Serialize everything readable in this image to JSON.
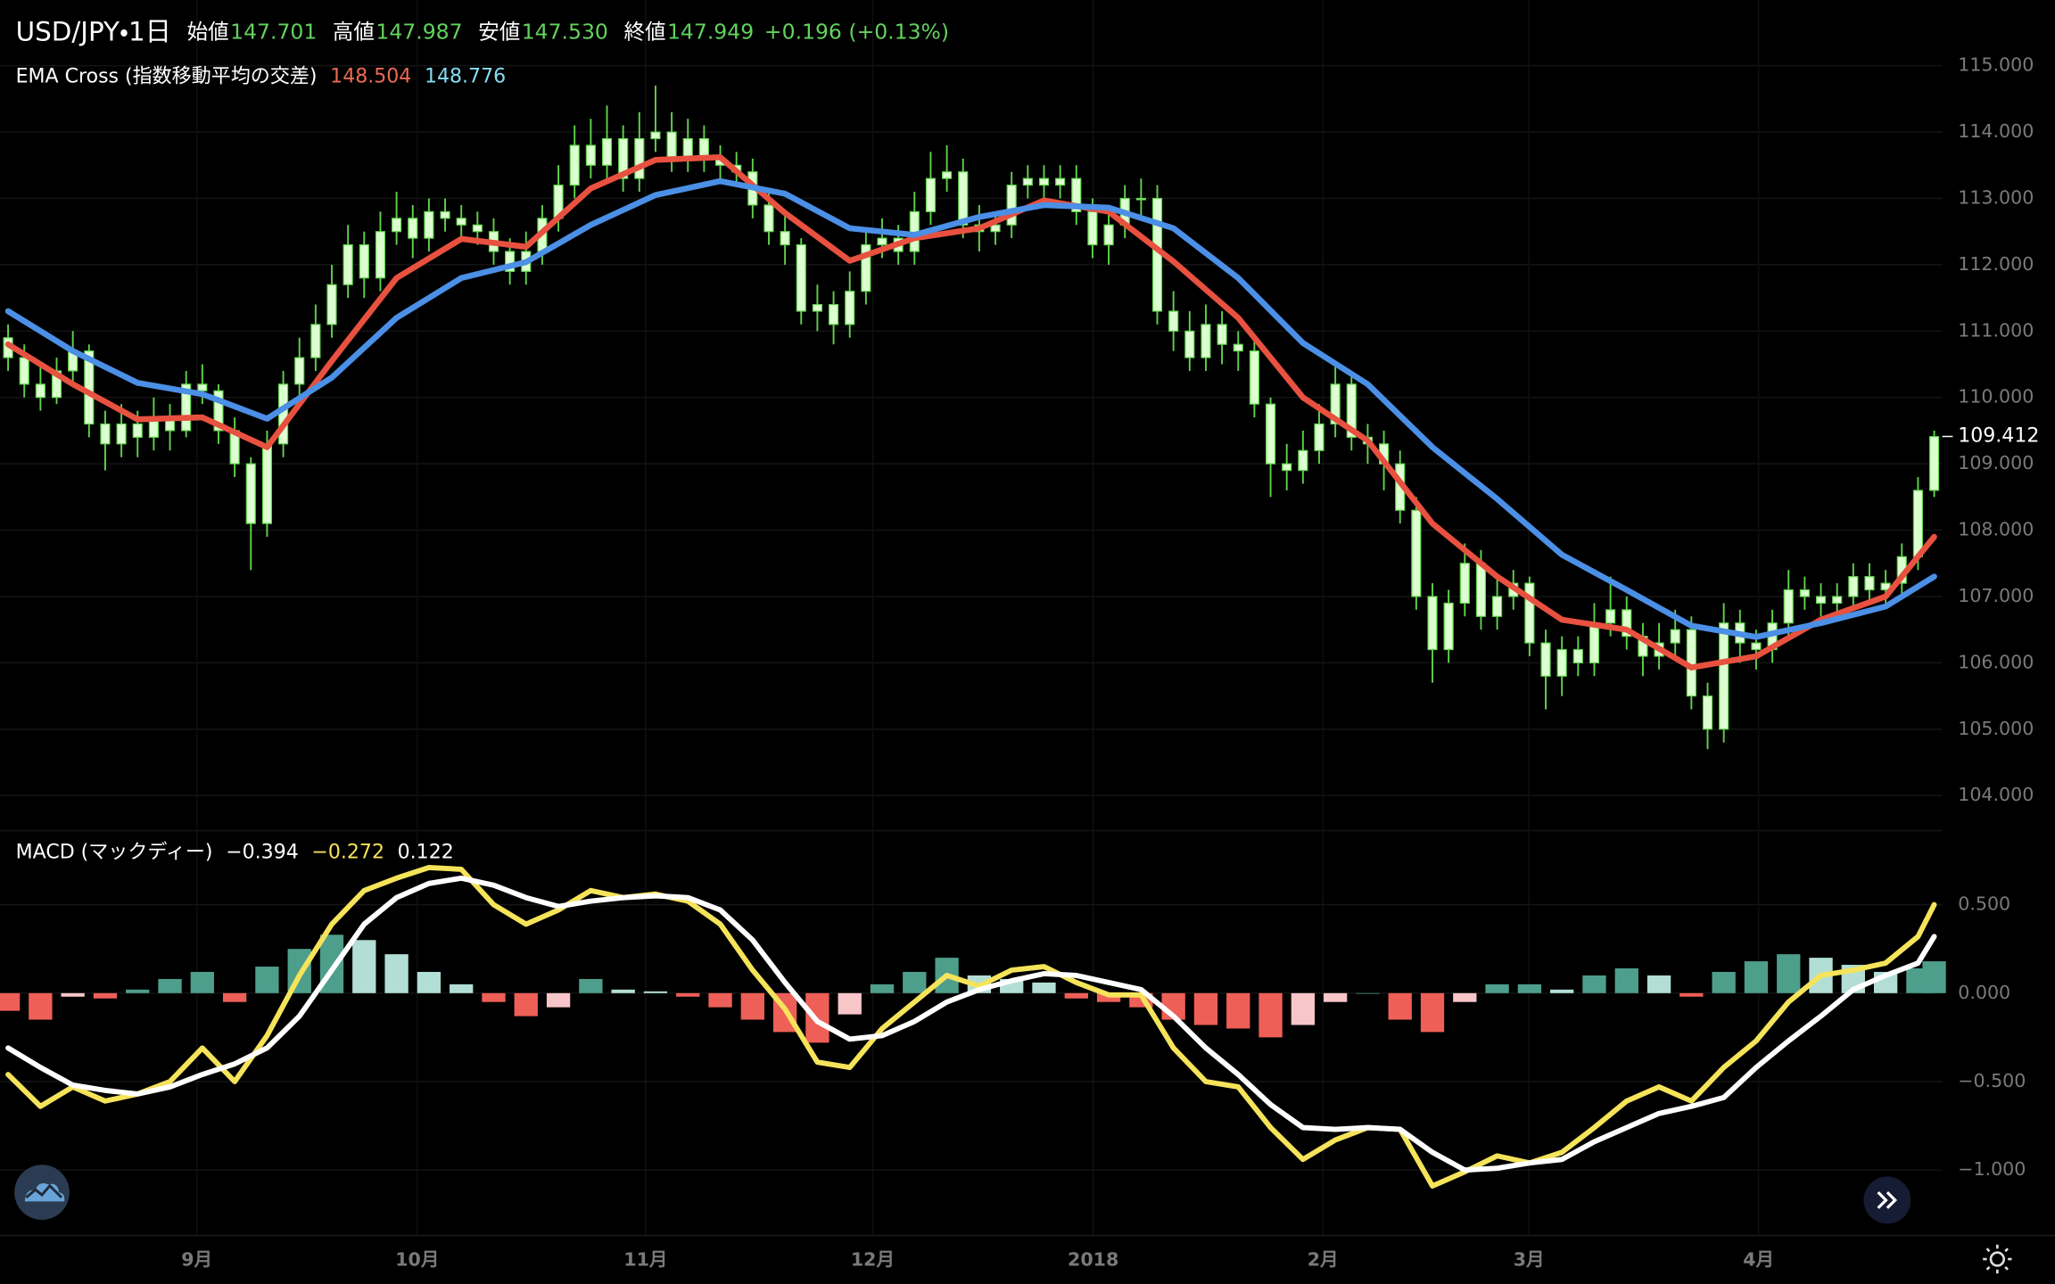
{
  "chart_data": [
    {
      "type": "candlestick",
      "title": "USD/JPY・1日",
      "ohlc": [
        {
          "label": "始値",
          "value": "147.701"
        },
        {
          "label": "高値",
          "value": "147.987"
        },
        {
          "label": "安値",
          "value": "147.530"
        },
        {
          "label": "終値",
          "value": "147.949"
        }
      ],
      "change": "+0.196 (+0.13%)",
      "legend_value_color": "#62d35c",
      "indicator": {
        "name": "EMA Cross (指数移動平均の交差)",
        "values": [
          "148.504",
          "148.776"
        ],
        "colors": [
          "#ec6a55",
          "#86dcf2"
        ]
      },
      "x": [
        0,
        1,
        2,
        3,
        4,
        5,
        6,
        7,
        8,
        9,
        10,
        11,
        12,
        13,
        14,
        15,
        16,
        17,
        18,
        19,
        20,
        21,
        22,
        23,
        24,
        25,
        26,
        27,
        28,
        29,
        30,
        31,
        32,
        33,
        34,
        35,
        36,
        37,
        38,
        39,
        40,
        41,
        42,
        43,
        44,
        45,
        46,
        47,
        48,
        49,
        50,
        51,
        52,
        53,
        54,
        55,
        56,
        57,
        58,
        59,
        60,
        61,
        62,
        63,
        64,
        65,
        66,
        67,
        68,
        69,
        70,
        71,
        72,
        73,
        74,
        75,
        76,
        77,
        78,
        79,
        80,
        81,
        82,
        83,
        84,
        85,
        86,
        87,
        88,
        89,
        90,
        91,
        92,
        93,
        94,
        95,
        96,
        97,
        98,
        99,
        100,
        101,
        102,
        103,
        104,
        105,
        106,
        107,
        108,
        109,
        110,
        111,
        112,
        113,
        114,
        115,
        116,
        117,
        118,
        119
      ],
      "open": [
        110.9,
        110.6,
        110.2,
        110.0,
        110.4,
        110.7,
        109.6,
        109.3,
        109.6,
        109.4,
        109.7,
        109.5,
        110.2,
        110.1,
        109.5,
        109.0,
        108.1,
        109.3,
        110.2,
        110.6,
        111.1,
        111.7,
        112.3,
        111.8,
        112.5,
        112.7,
        112.4,
        112.8,
        112.7,
        112.6,
        112.5,
        112.2,
        111.9,
        112.2,
        112.7,
        113.2,
        113.8,
        113.5,
        113.9,
        113.3,
        113.9,
        114.0,
        113.6,
        113.9,
        113.6,
        113.5,
        113.4,
        112.9,
        112.5,
        112.3,
        111.3,
        111.4,
        111.1,
        111.6,
        112.3,
        112.4,
        112.2,
        112.8,
        113.3,
        113.4,
        112.6,
        112.5,
        112.6,
        113.2,
        113.3,
        113.2,
        113.3,
        112.8,
        112.3,
        112.6,
        113.0,
        113.0,
        111.3,
        111.0,
        110.6,
        111.1,
        110.8,
        110.7,
        109.9,
        109.0,
        108.9,
        109.2,
        109.6,
        110.2,
        109.4,
        109.3,
        109.0,
        108.3,
        107.0,
        106.2,
        106.9,
        107.5,
        106.7,
        107.0,
        107.2,
        106.3,
        105.8,
        106.2,
        106.0,
        106.6,
        106.8,
        106.4,
        106.1,
        106.3,
        106.5,
        105.5,
        105.0,
        106.6,
        106.3,
        106.2,
        106.6,
        107.1,
        107.0,
        106.9,
        107.0,
        107.3,
        107.1,
        107.2,
        107.6,
        108.6
      ],
      "high": [
        111.1,
        110.8,
        110.5,
        110.6,
        111.0,
        110.8,
        109.8,
        109.9,
        109.8,
        110.0,
        109.9,
        110.4,
        110.5,
        110.2,
        109.7,
        109.1,
        109.5,
        110.4,
        110.9,
        111.4,
        112.0,
        112.6,
        112.5,
        112.8,
        113.1,
        112.9,
        113.0,
        113.0,
        112.9,
        112.8,
        112.7,
        112.4,
        112.5,
        112.9,
        113.5,
        114.1,
        114.2,
        114.4,
        114.1,
        114.3,
        114.7,
        114.3,
        114.2,
        114.1,
        113.8,
        113.7,
        113.6,
        113.1,
        112.8,
        112.4,
        111.7,
        111.6,
        111.9,
        112.5,
        112.7,
        112.6,
        113.1,
        113.7,
        113.8,
        113.6,
        112.9,
        112.8,
        113.4,
        113.5,
        113.5,
        113.5,
        113.5,
        113.0,
        112.8,
        113.2,
        113.3,
        113.2,
        111.6,
        111.3,
        111.4,
        111.3,
        111.0,
        110.9,
        110.0,
        109.3,
        109.5,
        109.9,
        110.5,
        110.4,
        109.6,
        109.5,
        109.2,
        108.5,
        107.2,
        107.1,
        107.8,
        107.7,
        107.3,
        107.4,
        107.3,
        106.5,
        106.4,
        106.4,
        106.9,
        107.3,
        107.0,
        106.6,
        106.6,
        106.8,
        106.7,
        105.7,
        106.9,
        106.8,
        106.5,
        106.8,
        107.4,
        107.3,
        107.2,
        107.2,
        107.5,
        107.5,
        107.4,
        107.8,
        108.8,
        109.5
      ],
      "low": [
        110.4,
        110.0,
        109.8,
        109.9,
        110.2,
        109.4,
        108.9,
        109.1,
        109.1,
        109.2,
        109.2,
        109.4,
        109.9,
        109.3,
        108.8,
        107.4,
        107.9,
        109.1,
        110.0,
        110.4,
        110.9,
        111.5,
        111.5,
        111.6,
        112.3,
        112.1,
        112.2,
        112.5,
        112.4,
        112.3,
        112.0,
        111.7,
        111.7,
        112.0,
        112.5,
        113.0,
        113.3,
        113.3,
        113.1,
        113.1,
        113.7,
        113.4,
        113.4,
        113.4,
        113.3,
        113.2,
        112.7,
        112.3,
        112.0,
        111.1,
        111.0,
        110.8,
        110.9,
        111.4,
        112.1,
        112.0,
        112.0,
        112.6,
        113.1,
        112.4,
        112.2,
        112.3,
        112.4,
        113.0,
        113.0,
        113.0,
        112.6,
        112.1,
        112.0,
        112.4,
        112.7,
        111.1,
        110.7,
        110.4,
        110.4,
        110.5,
        110.4,
        109.7,
        108.5,
        108.6,
        108.7,
        109.0,
        109.4,
        109.2,
        109.0,
        108.6,
        108.1,
        106.8,
        105.7,
        106.0,
        106.7,
        106.5,
        106.5,
        106.8,
        106.1,
        105.3,
        105.5,
        105.8,
        105.8,
        106.4,
        106.2,
        105.8,
        105.9,
        106.1,
        105.3,
        104.7,
        104.8,
        106.0,
        105.9,
        106.0,
        106.4,
        106.8,
        106.7,
        106.7,
        106.8,
        106.9,
        106.9,
        107.0,
        107.4,
        108.5
      ],
      "close": [
        110.6,
        110.2,
        110.0,
        110.4,
        110.7,
        109.6,
        109.3,
        109.6,
        109.4,
        109.7,
        109.5,
        110.2,
        110.1,
        109.5,
        109.0,
        108.1,
        109.3,
        110.2,
        110.6,
        111.1,
        111.7,
        112.3,
        111.8,
        112.5,
        112.7,
        112.4,
        112.8,
        112.7,
        112.6,
        112.5,
        112.2,
        111.9,
        112.2,
        112.7,
        113.2,
        113.8,
        113.5,
        113.9,
        113.3,
        113.9,
        114.0,
        113.6,
        113.9,
        113.6,
        113.5,
        113.4,
        112.9,
        112.5,
        112.3,
        111.3,
        111.4,
        111.1,
        111.6,
        112.3,
        112.4,
        112.2,
        112.8,
        113.3,
        113.4,
        112.6,
        112.5,
        112.6,
        113.2,
        113.3,
        113.2,
        113.3,
        112.8,
        112.3,
        112.6,
        113.0,
        113.0,
        111.3,
        111.0,
        110.6,
        111.1,
        110.8,
        110.7,
        109.9,
        109.0,
        108.9,
        109.2,
        109.6,
        110.2,
        109.4,
        109.3,
        109.0,
        108.3,
        107.0,
        106.2,
        106.9,
        107.5,
        106.7,
        107.0,
        107.2,
        106.3,
        105.8,
        106.2,
        106.0,
        106.6,
        106.8,
        106.4,
        106.1,
        106.3,
        106.5,
        105.5,
        105.0,
        106.6,
        106.3,
        106.2,
        106.6,
        107.1,
        107.0,
        106.9,
        107.0,
        107.3,
        107.1,
        107.2,
        107.6,
        108.6,
        109.41
      ],
      "body_color": "#dcffd0",
      "wick_color": "#5fd34a",
      "lines": [
        {
          "color": "#e8513f",
          "x": [
            0,
            4,
            8,
            12,
            16,
            20,
            24,
            28,
            32,
            36,
            40,
            44,
            48,
            52,
            56,
            60,
            64,
            68,
            72,
            76,
            80,
            84,
            88,
            92,
            96,
            100,
            104,
            108,
            112,
            116,
            119
          ],
          "values": [
            110.8,
            110.2,
            109.67,
            109.7,
            109.25,
            110.55,
            111.8,
            112.39,
            112.27,
            113.15,
            113.58,
            113.62,
            112.78,
            112.06,
            112.4,
            112.55,
            112.97,
            112.8,
            112.05,
            111.2,
            110.0,
            109.35,
            108.1,
            107.3,
            106.65,
            106.5,
            105.93,
            106.1,
            106.65,
            107.0,
            107.9
          ]
        },
        {
          "color": "#4b8fe6",
          "x": [
            0,
            4,
            8,
            12,
            16,
            20,
            24,
            28,
            32,
            36,
            40,
            44,
            48,
            52,
            56,
            60,
            64,
            68,
            72,
            76,
            80,
            84,
            88,
            92,
            96,
            100,
            104,
            108,
            112,
            116,
            119
          ],
          "values": [
            111.3,
            110.7,
            110.22,
            110.05,
            109.68,
            110.3,
            111.2,
            111.8,
            112.04,
            112.6,
            113.05,
            113.26,
            113.07,
            112.55,
            112.45,
            112.72,
            112.9,
            112.86,
            112.55,
            111.8,
            110.82,
            110.2,
            109.25,
            108.47,
            107.63,
            107.1,
            106.56,
            106.39,
            106.6,
            106.85,
            107.3
          ]
        }
      ],
      "last_price": 109.412,
      "xlim": [
        -0.5,
        119.5
      ],
      "xticks": [
        {
          "value": 11.66,
          "label": "9月"
        },
        {
          "value": 25.28,
          "label": "10月"
        },
        {
          "value": 39.39,
          "label": "11月"
        },
        {
          "value": 53.42,
          "label": "12月"
        },
        {
          "value": 67.04,
          "label": "2018"
        },
        {
          "value": 81.23,
          "label": "2月"
        },
        {
          "value": 93.96,
          "label": "3月"
        },
        {
          "value": 108.15,
          "label": "4月"
        }
      ],
      "ylim": [
        103.55,
        115.99
      ],
      "yticks": [
        {
          "value": 104,
          "label": "104.000"
        },
        {
          "value": 105,
          "label": "105.000"
        },
        {
          "value": 106,
          "label": "106.000"
        },
        {
          "value": 107,
          "label": "107.000"
        },
        {
          "value": 108,
          "label": "108.000"
        },
        {
          "value": 109,
          "label": "109.000"
        },
        {
          "value": 110,
          "label": "110.000"
        },
        {
          "value": 111,
          "label": "111.000"
        },
        {
          "value": 112,
          "label": "112.000"
        },
        {
          "value": 113,
          "label": "113.000"
        },
        {
          "value": 114,
          "label": "114.000"
        },
        {
          "value": 115,
          "label": "115.000"
        }
      ],
      "grid": true
    },
    {
      "type": "macd",
      "title": "MACD (マックディー)",
      "legend_values": [
        "−0.394",
        "−0.272",
        "0.122"
      ],
      "legend_colors": [
        "#ffffff",
        "#f5e35a",
        "#ffffff"
      ],
      "x": [
        0,
        2,
        4,
        6,
        8,
        10,
        12,
        14,
        16,
        18,
        20,
        22,
        24,
        26,
        28,
        30,
        32,
        34,
        36,
        38,
        40,
        42,
        44,
        46,
        48,
        50,
        52,
        54,
        56,
        58,
        60,
        62,
        64,
        66,
        68,
        70,
        72,
        74,
        76,
        78,
        80,
        82,
        84,
        86,
        88,
        90,
        92,
        94,
        96,
        98,
        100,
        102,
        104,
        106,
        108,
        110,
        112,
        114,
        116,
        118,
        119
      ],
      "histogram": [
        -0.1,
        -0.15,
        -0.02,
        -0.03,
        0.02,
        0.08,
        0.12,
        -0.05,
        0.15,
        0.25,
        0.33,
        0.3,
        0.22,
        0.12,
        0.05,
        -0.05,
        -0.13,
        -0.08,
        0.08,
        0.02,
        0.01,
        -0.02,
        -0.08,
        -0.15,
        -0.22,
        -0.28,
        -0.12,
        0.05,
        0.12,
        0.2,
        0.1,
        0.08,
        0.06,
        -0.03,
        -0.05,
        -0.08,
        -0.15,
        -0.18,
        -0.2,
        -0.25,
        -0.18,
        -0.05,
        0.0,
        -0.15,
        -0.22,
        -0.05,
        0.05,
        0.05,
        0.02,
        0.1,
        0.14,
        0.1,
        -0.02,
        0.12,
        0.18,
        0.22,
        0.2,
        0.16,
        0.12,
        0.14,
        0.18
      ],
      "histogram_colors": {
        "pos_rising": "#4e9e8c",
        "pos_falling": "#b2ded5",
        "neg_falling": "#ee5f58",
        "neg_rising": "#f8c5c9"
      },
      "series": [
        {
          "color": "#f5e35a",
          "values": [
            -0.46,
            -0.64,
            -0.53,
            -0.61,
            -0.57,
            -0.5,
            -0.31,
            -0.5,
            -0.24,
            0.1,
            0.39,
            0.58,
            0.65,
            0.71,
            0.7,
            0.5,
            0.39,
            0.47,
            0.58,
            0.54,
            0.56,
            0.52,
            0.39,
            0.13,
            -0.09,
            -0.39,
            -0.42,
            -0.2,
            -0.05,
            0.1,
            0.04,
            0.13,
            0.15,
            0.06,
            -0.01,
            -0.01,
            -0.31,
            -0.5,
            -0.53,
            -0.76,
            -0.94,
            -0.83,
            -0.76,
            -0.77,
            -1.09,
            -1.01,
            -0.92,
            -0.96,
            -0.9,
            -0.76,
            -0.61,
            -0.53,
            -0.61,
            -0.42,
            -0.27,
            -0.05,
            0.1,
            0.13,
            0.17,
            0.32,
            0.5
          ]
        },
        {
          "color": "#ffffff",
          "values": [
            -0.31,
            -0.42,
            -0.52,
            -0.55,
            -0.57,
            -0.53,
            -0.46,
            -0.4,
            -0.31,
            -0.13,
            0.13,
            0.39,
            0.54,
            0.62,
            0.65,
            0.61,
            0.54,
            0.49,
            0.52,
            0.54,
            0.55,
            0.54,
            0.47,
            0.3,
            0.06,
            -0.16,
            -0.26,
            -0.24,
            -0.16,
            -0.05,
            0.02,
            0.07,
            0.11,
            0.1,
            0.06,
            0.02,
            -0.13,
            -0.31,
            -0.46,
            -0.63,
            -0.76,
            -0.77,
            -0.76,
            -0.77,
            -0.9,
            -1.0,
            -0.99,
            -0.96,
            -0.94,
            -0.84,
            -0.76,
            -0.68,
            -0.64,
            -0.59,
            -0.42,
            -0.27,
            -0.13,
            0.02,
            0.1,
            0.17,
            0.32
          ]
        }
      ],
      "xlim": [
        -0.5,
        119.5
      ],
      "ylim": [
        -1.348,
        0.874
      ],
      "yticks": [
        {
          "value": 0.5,
          "label": "0.500"
        },
        {
          "value": 0,
          "label": "0.000"
        },
        {
          "value": -0.5,
          "label": "−0.500"
        },
        {
          "value": -1,
          "label": "−1.000"
        }
      ],
      "grid": true
    }
  ]
}
